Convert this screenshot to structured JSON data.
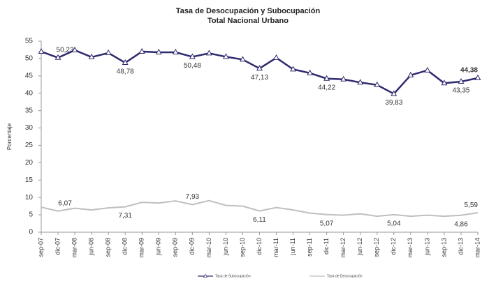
{
  "chart_data": {
    "type": "line",
    "title": "Tasa de Desocupación y Subocupación",
    "subtitle": "Total Nacional Urbano",
    "y_label": "Porcentaje",
    "categories": [
      "sep-07",
      "dic-07",
      "mar-08",
      "jun-08",
      "sep-08",
      "dic-08",
      "mar-09",
      "jun-09",
      "sep-09",
      "dic-09",
      "mar-10",
      "jun-10",
      "sep-10",
      "dic-10",
      "mar-11",
      "jun-11",
      "sep-11",
      "dic-11",
      "mar-12",
      "jun-12",
      "sep-12",
      "dic-12",
      "mar-13",
      "jun-13",
      "sep-13",
      "dic-13",
      "mar-14"
    ],
    "series": [
      {
        "name": "Tasa de Subocupación",
        "color": "#2f2a6e",
        "marker": "triangle",
        "values": [
          52.0,
          50.23,
          52.4,
          50.4,
          51.6,
          48.78,
          52.0,
          51.8,
          51.8,
          50.48,
          51.5,
          50.5,
          49.7,
          47.13,
          50.2,
          46.9,
          45.8,
          44.22,
          44.0,
          43.1,
          42.4,
          39.83,
          45.2,
          46.6,
          42.9,
          43.35,
          44.38
        ],
        "value_labels": [
          null,
          "50,23",
          null,
          null,
          null,
          "48,78",
          null,
          null,
          null,
          "50,48",
          null,
          null,
          null,
          "47,13",
          null,
          null,
          null,
          "44,22",
          null,
          null,
          null,
          "39,83",
          null,
          null,
          null,
          "43,35",
          "44,38"
        ]
      },
      {
        "name": "Tasa de Desocupación",
        "color": "#bfbfbf",
        "values": [
          7.2,
          6.07,
          6.9,
          6.4,
          7.0,
          7.31,
          8.6,
          8.4,
          9.0,
          7.93,
          9.1,
          7.7,
          7.5,
          6.11,
          7.1,
          6.4,
          5.5,
          5.07,
          4.9,
          5.3,
          4.6,
          5.04,
          4.6,
          4.9,
          4.6,
          4.86,
          5.59
        ],
        "value_labels": [
          null,
          "6,07",
          null,
          null,
          null,
          "7,31",
          null,
          null,
          null,
          "7,93",
          null,
          null,
          null,
          "6,11",
          null,
          null,
          null,
          "5,07",
          null,
          null,
          null,
          "5,04",
          null,
          null,
          null,
          "4,86",
          "5,59"
        ]
      }
    ],
    "ylim": [
      0,
      55
    ],
    "yticks": [
      0,
      5,
      10,
      15,
      20,
      25,
      30,
      35,
      40,
      45,
      50,
      55
    ],
    "grid": false
  }
}
